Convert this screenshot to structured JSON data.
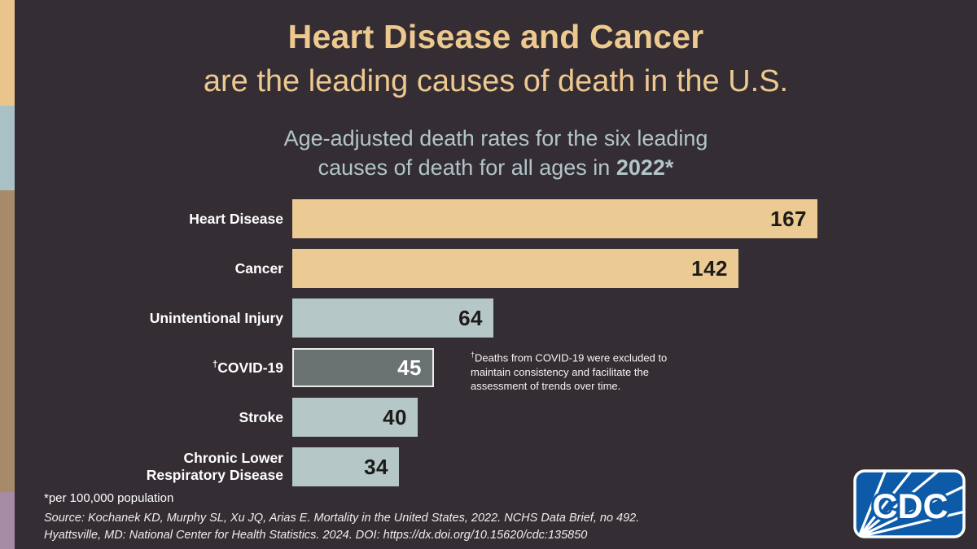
{
  "page": {
    "background_color": "#342e34"
  },
  "edge_stripes": [
    {
      "name": "tan",
      "color": "#e9c58d"
    },
    {
      "name": "blue",
      "color": "#a9c0c4"
    },
    {
      "name": "brown",
      "color": "#a68a69"
    },
    {
      "name": "mauve",
      "color": "#a58ba3"
    }
  ],
  "header": {
    "title_bold": "Heart Disease and Cancer",
    "title_rest": "are the leading causes of death in the U.S.",
    "title_color": "#eec98f",
    "subtitle_line1": "Age-adjusted death rates for the six leading",
    "subtitle_line2_prefix": "causes of death for all ages in ",
    "subtitle_line2_year": "2022*",
    "subtitle_color": "#b2c5c9"
  },
  "chart_data": {
    "type": "bar",
    "orientation": "horizontal",
    "title": "Age-adjusted death rates for the six leading causes of death for all ages in 2022*",
    "categories": [
      "Heart Disease",
      "Cancer",
      "Unintentional Injury",
      "†COVID-19",
      "Stroke",
      "Chronic Lower Respiratory Disease"
    ],
    "values": [
      167,
      142,
      64,
      45,
      40,
      34
    ],
    "xlim": [
      0,
      167
    ],
    "grid": false,
    "legend": false,
    "value_labels": "inside-end",
    "bar_colors": [
      "#ecca93",
      "#ecca93",
      "#b5c7c7",
      "#6b7372",
      "#b5c7c7",
      "#b5c7c7"
    ],
    "value_label_colors": [
      "#1d1b19",
      "#1d1b19",
      "#1d1b19",
      "#ffffff",
      "#1d1b19",
      "#1d1b19"
    ],
    "outlined": [
      false,
      false,
      false,
      true,
      false,
      false
    ],
    "outline_color": "#ebebeb",
    "label_color": "#ffffff",
    "annotation": "†Deaths from COVID-19 were excluded to maintain consistency and facilitate the assessment of trends over time."
  },
  "footer": {
    "footnote": "*per 100,000 population",
    "source_line1": "Source: Kochanek KD, Murphy SL, Xu JQ, Arias E. Mortality in the United States, 2022. NCHS Data Brief, no 492.",
    "source_line2": "Hyattsville, MD: National Center for Health Statistics. 2024. DOI: https://dx.doi.org/10.15620/cdc:135850"
  },
  "logo": {
    "label": "CDC",
    "bg_color": "#0d5ba8",
    "border_color": "#ffffff"
  }
}
